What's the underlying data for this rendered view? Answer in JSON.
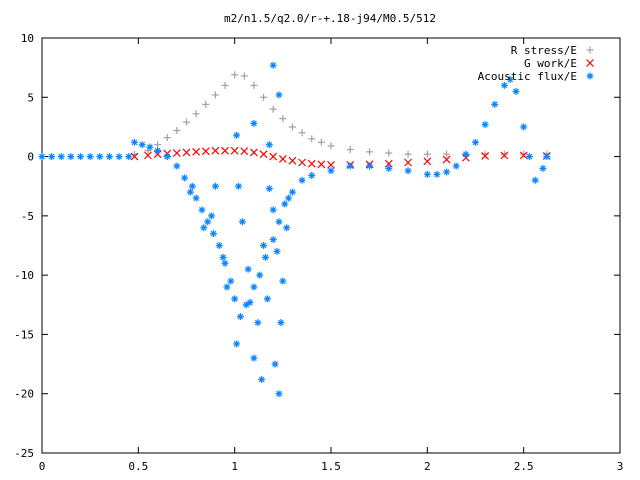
{
  "chart_data": {
    "type": "scatter",
    "title": "m2/n1.5/q2.0/r-+.18-j94/M0.5/512",
    "xlabel": "",
    "ylabel": "",
    "xlim": [
      0,
      3
    ],
    "ylim": [
      -25,
      10
    ],
    "x_ticks": [
      "0",
      "0.5",
      "1",
      "1.5",
      "2",
      "2.5",
      "3"
    ],
    "y_ticks": [
      "10",
      "5",
      "0",
      "-5",
      "-10",
      "-15",
      "-20",
      "-25"
    ],
    "grid": false,
    "legend_position": "top-right",
    "series": [
      {
        "name": "R stress/E",
        "marker": "plus",
        "color": "#a0a0a0",
        "points": [
          [
            0.48,
            0.2
          ],
          [
            0.55,
            0.5
          ],
          [
            0.6,
            1.0
          ],
          [
            0.65,
            1.6
          ],
          [
            0.7,
            2.2
          ],
          [
            0.75,
            2.9
          ],
          [
            0.8,
            3.6
          ],
          [
            0.85,
            4.4
          ],
          [
            0.9,
            5.2
          ],
          [
            0.95,
            6.0
          ],
          [
            1.0,
            6.9
          ],
          [
            1.05,
            6.8
          ],
          [
            1.1,
            6.0
          ],
          [
            1.15,
            5.0
          ],
          [
            1.2,
            4.0
          ],
          [
            1.25,
            3.2
          ],
          [
            1.3,
            2.5
          ],
          [
            1.35,
            2.0
          ],
          [
            1.4,
            1.5
          ],
          [
            1.45,
            1.2
          ],
          [
            1.5,
            0.9
          ],
          [
            1.6,
            0.6
          ],
          [
            1.7,
            0.4
          ],
          [
            1.8,
            0.3
          ],
          [
            1.9,
            0.2
          ],
          [
            2.0,
            0.2
          ],
          [
            2.1,
            0.2
          ],
          [
            2.2,
            0.2
          ],
          [
            2.3,
            0.2
          ],
          [
            2.4,
            0.2
          ],
          [
            2.5,
            0.2
          ],
          [
            2.62,
            0.2
          ]
        ]
      },
      {
        "name": "G work/E",
        "marker": "cross",
        "color": "#ff0000",
        "points": [
          [
            0.48,
            0.0
          ],
          [
            0.55,
            0.1
          ],
          [
            0.6,
            0.2
          ],
          [
            0.65,
            0.25
          ],
          [
            0.7,
            0.3
          ],
          [
            0.75,
            0.35
          ],
          [
            0.8,
            0.4
          ],
          [
            0.85,
            0.45
          ],
          [
            0.9,
            0.5
          ],
          [
            0.95,
            0.5
          ],
          [
            1.0,
            0.5
          ],
          [
            1.05,
            0.45
          ],
          [
            1.1,
            0.35
          ],
          [
            1.15,
            0.2
          ],
          [
            1.2,
            0.0
          ],
          [
            1.25,
            -0.2
          ],
          [
            1.3,
            -0.35
          ],
          [
            1.35,
            -0.5
          ],
          [
            1.4,
            -0.6
          ],
          [
            1.45,
            -0.65
          ],
          [
            1.5,
            -0.7
          ],
          [
            1.6,
            -0.7
          ],
          [
            1.7,
            -0.65
          ],
          [
            1.8,
            -0.6
          ],
          [
            1.9,
            -0.5
          ],
          [
            2.0,
            -0.4
          ],
          [
            2.1,
            -0.25
          ],
          [
            2.2,
            -0.1
          ],
          [
            2.3,
            0.05
          ],
          [
            2.4,
            0.1
          ],
          [
            2.5,
            0.1
          ],
          [
            2.62,
            0.05
          ]
        ]
      },
      {
        "name": "Acoustic flux/E",
        "marker": "star",
        "color": "#0a84ff",
        "points": [
          [
            0.0,
            0.0
          ],
          [
            0.05,
            0.0
          ],
          [
            0.1,
            0.0
          ],
          [
            0.15,
            0.0
          ],
          [
            0.2,
            0.0
          ],
          [
            0.25,
            0.0
          ],
          [
            0.3,
            0.0
          ],
          [
            0.35,
            0.0
          ],
          [
            0.4,
            0.0
          ],
          [
            0.45,
            0.0
          ],
          [
            0.48,
            1.2
          ],
          [
            0.52,
            1.0
          ],
          [
            0.56,
            0.8
          ],
          [
            0.6,
            0.5
          ],
          [
            0.65,
            0.0
          ],
          [
            0.7,
            -0.8
          ],
          [
            0.74,
            -1.8
          ],
          [
            0.78,
            -2.5
          ],
          [
            0.8,
            -3.5
          ],
          [
            0.83,
            -4.5
          ],
          [
            0.86,
            -5.5
          ],
          [
            0.89,
            -6.5
          ],
          [
            0.92,
            -7.5
          ],
          [
            0.95,
            -9.0
          ],
          [
            0.98,
            -10.5
          ],
          [
            1.0,
            -12.0
          ],
          [
            1.03,
            -13.5
          ],
          [
            1.06,
            -12.5
          ],
          [
            1.1,
            -11.0
          ],
          [
            1.13,
            -10.0
          ],
          [
            1.16,
            -8.5
          ],
          [
            1.2,
            -7.0
          ],
          [
            1.23,
            -5.5
          ],
          [
            1.26,
            -4.0
          ],
          [
            1.3,
            -3.0
          ],
          [
            1.35,
            -2.0
          ],
          [
            1.4,
            -1.6
          ],
          [
            1.5,
            -1.2
          ],
          [
            1.6,
            -0.8
          ],
          [
            1.7,
            -0.8
          ],
          [
            1.8,
            -1.0
          ],
          [
            1.9,
            -1.2
          ],
          [
            2.0,
            -1.5
          ],
          [
            2.05,
            -1.5
          ],
          [
            2.1,
            -1.3
          ],
          [
            2.15,
            -0.8
          ],
          [
            2.2,
            0.2
          ],
          [
            2.25,
            1.2
          ],
          [
            2.3,
            2.7
          ],
          [
            2.35,
            4.4
          ],
          [
            2.4,
            6.0
          ],
          [
            2.43,
            6.5
          ],
          [
            2.46,
            5.5
          ],
          [
            2.5,
            2.5
          ],
          [
            2.53,
            0.0
          ],
          [
            2.56,
            -2.0
          ],
          [
            2.6,
            -1.0
          ],
          [
            2.62,
            0.0
          ],
          [
            0.77,
            -3.0
          ],
          [
            0.84,
            -6.0
          ],
          [
            0.88,
            -5.0
          ],
          [
            0.9,
            -2.5
          ],
          [
            0.94,
            -8.5
          ],
          [
            0.96,
            -11.0
          ],
          [
            1.01,
            -15.8
          ],
          [
            1.02,
            -2.5
          ],
          [
            1.04,
            -5.5
          ],
          [
            1.07,
            -9.5
          ],
          [
            1.08,
            -12.3
          ],
          [
            1.1,
            -17.0
          ],
          [
            1.12,
            -14.0
          ],
          [
            1.14,
            -18.8
          ],
          [
            1.15,
            -7.5
          ],
          [
            1.17,
            -12.0
          ],
          [
            1.18,
            -2.7
          ],
          [
            1.2,
            -4.5
          ],
          [
            1.21,
            -17.5
          ],
          [
            1.22,
            -8.0
          ],
          [
            1.23,
            -20.0
          ],
          [
            1.24,
            -14.0
          ],
          [
            1.25,
            -10.5
          ],
          [
            1.27,
            -6.0
          ],
          [
            1.28,
            -3.5
          ],
          [
            1.01,
            1.8
          ],
          [
            1.1,
            2.8
          ],
          [
            1.18,
            1.0
          ],
          [
            1.2,
            7.7
          ],
          [
            1.23,
            5.2
          ]
        ]
      }
    ]
  }
}
